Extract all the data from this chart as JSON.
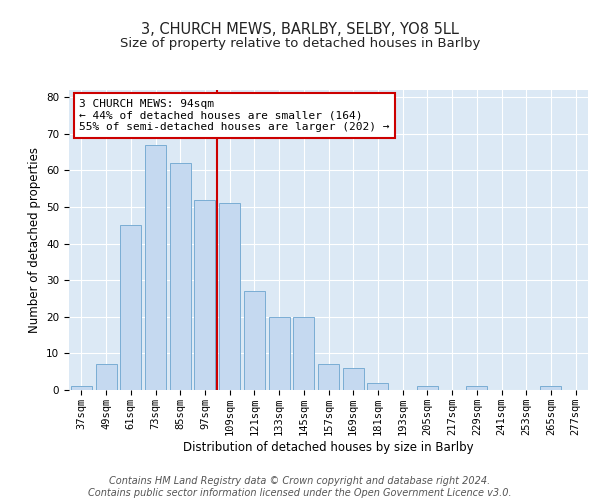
{
  "title": "3, CHURCH MEWS, BARLBY, SELBY, YO8 5LL",
  "subtitle": "Size of property relative to detached houses in Barlby",
  "xlabel": "Distribution of detached houses by size in Barlby",
  "ylabel": "Number of detached properties",
  "categories": [
    "37sqm",
    "49sqm",
    "61sqm",
    "73sqm",
    "85sqm",
    "97sqm",
    "109sqm",
    "121sqm",
    "133sqm",
    "145sqm",
    "157sqm",
    "169sqm",
    "181sqm",
    "193sqm",
    "205sqm",
    "217sqm",
    "229sqm",
    "241sqm",
    "253sqm",
    "265sqm",
    "277sqm"
  ],
  "values": [
    1,
    7,
    45,
    67,
    62,
    52,
    51,
    27,
    20,
    20,
    7,
    6,
    2,
    0,
    1,
    0,
    1,
    0,
    0,
    1,
    0
  ],
  "bar_color": "#c5d9f0",
  "bar_edge_color": "#7aadd4",
  "vline_x_idx": 5,
  "vline_color": "#cc0000",
  "ylim": [
    0,
    82
  ],
  "yticks": [
    0,
    10,
    20,
    30,
    40,
    50,
    60,
    70,
    80
  ],
  "annotation_line1": "3 CHURCH MEWS: 94sqm",
  "annotation_line2": "← 44% of detached houses are smaller (164)",
  "annotation_line3": "55% of semi-detached houses are larger (202) →",
  "annotation_box_color": "#ffffff",
  "annotation_box_edge": "#cc0000",
  "footer": "Contains HM Land Registry data © Crown copyright and database right 2024.\nContains public sector information licensed under the Open Government Licence v3.0.",
  "background_color": "#ffffff",
  "plot_background": "#dce9f5",
  "title_fontsize": 10.5,
  "subtitle_fontsize": 9.5,
  "axis_label_fontsize": 8.5,
  "tick_fontsize": 7.5,
  "annotation_fontsize": 8,
  "footer_fontsize": 7
}
